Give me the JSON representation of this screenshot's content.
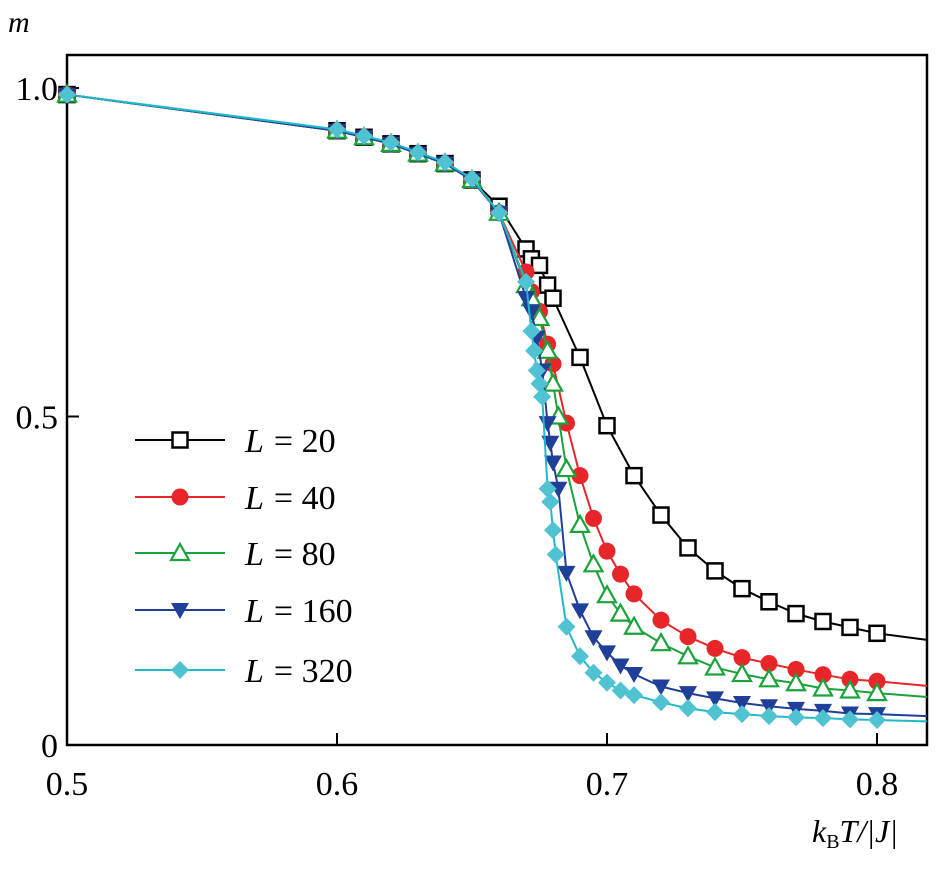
{
  "chart_data": {
    "type": "line",
    "title": "",
    "ylabel": "m",
    "xlabel_parts": {
      "k": "k",
      "sub": "B",
      "rest": "T/|J|"
    },
    "xlim": [
      0.5,
      0.8185
    ],
    "ylim": [
      0,
      1.05
    ],
    "xticks": [
      0.5,
      0.6,
      0.7,
      0.8
    ],
    "xtick_labels": [
      "0.5",
      "0.6",
      "0.7",
      "0.8"
    ],
    "yticks": [
      0,
      0.5,
      1.0
    ],
    "ytick_labels": [
      "0",
      "0.5",
      "1.0"
    ],
    "grid": false,
    "legend_position": "left-middle",
    "series": [
      {
        "name": "L = 20",
        "label_var": "L",
        "label_value": "= 20",
        "color": "#000000",
        "marker": "open-square",
        "x": [
          0.5,
          0.6,
          0.61,
          0.62,
          0.63,
          0.64,
          0.65,
          0.66,
          0.67,
          0.672,
          0.675,
          0.678,
          0.68,
          0.69,
          0.7,
          0.71,
          0.72,
          0.73,
          0.74,
          0.75,
          0.76,
          0.77,
          0.78,
          0.79,
          0.8
        ],
        "y": [
          0.99,
          0.935,
          0.925,
          0.915,
          0.9,
          0.885,
          0.86,
          0.82,
          0.755,
          0.74,
          0.73,
          0.7,
          0.68,
          0.59,
          0.486,
          0.41,
          0.35,
          0.3,
          0.265,
          0.238,
          0.218,
          0.2,
          0.188,
          0.179,
          0.17
        ],
        "tail": [
          0.8185,
          0.16
        ]
      },
      {
        "name": "L = 40",
        "label_var": "L",
        "label_value": "= 40",
        "color": "#e8262a",
        "marker": "filled-circle",
        "x": [
          0.5,
          0.6,
          0.61,
          0.62,
          0.63,
          0.64,
          0.65,
          0.66,
          0.67,
          0.672,
          0.675,
          0.678,
          0.68,
          0.685,
          0.69,
          0.695,
          0.7,
          0.705,
          0.71,
          0.72,
          0.73,
          0.74,
          0.75,
          0.76,
          0.77,
          0.78,
          0.79,
          0.8
        ],
        "y": [
          0.99,
          0.935,
          0.925,
          0.915,
          0.9,
          0.885,
          0.86,
          0.81,
          0.72,
          0.69,
          0.66,
          0.61,
          0.58,
          0.49,
          0.41,
          0.345,
          0.295,
          0.26,
          0.23,
          0.19,
          0.165,
          0.147,
          0.133,
          0.124,
          0.115,
          0.107,
          0.1,
          0.097
        ],
        "tail": [
          0.8185,
          0.09
        ]
      },
      {
        "name": "L = 80",
        "label_var": "L",
        "label_value": "= 80",
        "color": "#1aa33a",
        "marker": "open-triangle-up",
        "x": [
          0.5,
          0.6,
          0.61,
          0.62,
          0.63,
          0.64,
          0.65,
          0.66,
          0.67,
          0.672,
          0.675,
          0.678,
          0.68,
          0.682,
          0.685,
          0.69,
          0.695,
          0.7,
          0.705,
          0.71,
          0.72,
          0.73,
          0.74,
          0.75,
          0.76,
          0.77,
          0.78,
          0.79,
          0.8
        ],
        "y": [
          0.99,
          0.935,
          0.925,
          0.915,
          0.9,
          0.885,
          0.86,
          0.81,
          0.7,
          0.68,
          0.65,
          0.6,
          0.55,
          0.5,
          0.42,
          0.335,
          0.275,
          0.228,
          0.2,
          0.18,
          0.155,
          0.135,
          0.118,
          0.108,
          0.1,
          0.094,
          0.086,
          0.083,
          0.079
        ],
        "tail": [
          0.8185,
          0.073
        ]
      },
      {
        "name": "L = 160",
        "label_var": "L",
        "label_value": "= 160",
        "color": "#1f3f99",
        "marker": "filled-triangle-down",
        "x": [
          0.5,
          0.6,
          0.61,
          0.62,
          0.63,
          0.64,
          0.65,
          0.66,
          0.67,
          0.672,
          0.674,
          0.676,
          0.678,
          0.679,
          0.68,
          0.682,
          0.685,
          0.69,
          0.695,
          0.7,
          0.705,
          0.71,
          0.72,
          0.73,
          0.74,
          0.75,
          0.76,
          0.77,
          0.78,
          0.79,
          0.8
        ],
        "y": [
          0.99,
          0.935,
          0.925,
          0.915,
          0.9,
          0.885,
          0.86,
          0.81,
          0.68,
          0.66,
          0.62,
          0.57,
          0.49,
          0.46,
          0.43,
          0.39,
          0.262,
          0.205,
          0.164,
          0.141,
          0.121,
          0.108,
          0.089,
          0.079,
          0.071,
          0.064,
          0.059,
          0.055,
          0.052,
          0.048,
          0.047
        ],
        "tail": [
          0.8185,
          0.044
        ]
      },
      {
        "name": "L = 320",
        "label_var": "L",
        "label_value": "= 320",
        "color": "#50c3d3",
        "marker": "filled-diamond",
        "x": [
          0.5,
          0.6,
          0.61,
          0.62,
          0.63,
          0.64,
          0.65,
          0.66,
          0.67,
          0.672,
          0.673,
          0.674,
          0.675,
          0.676,
          0.678,
          0.679,
          0.68,
          0.681,
          0.685,
          0.69,
          0.695,
          0.7,
          0.705,
          0.71,
          0.72,
          0.73,
          0.74,
          0.75,
          0.76,
          0.77,
          0.78,
          0.79,
          0.8
        ],
        "y": [
          0.99,
          0.937,
          0.927,
          0.917,
          0.902,
          0.887,
          0.862,
          0.81,
          0.705,
          0.63,
          0.6,
          0.57,
          0.55,
          0.53,
          0.39,
          0.37,
          0.327,
          0.29,
          0.18,
          0.135,
          0.11,
          0.095,
          0.083,
          0.076,
          0.065,
          0.056,
          0.05,
          0.047,
          0.044,
          0.042,
          0.041,
          0.039,
          0.038
        ],
        "tail": [
          0.8185,
          0.036
        ]
      }
    ]
  }
}
